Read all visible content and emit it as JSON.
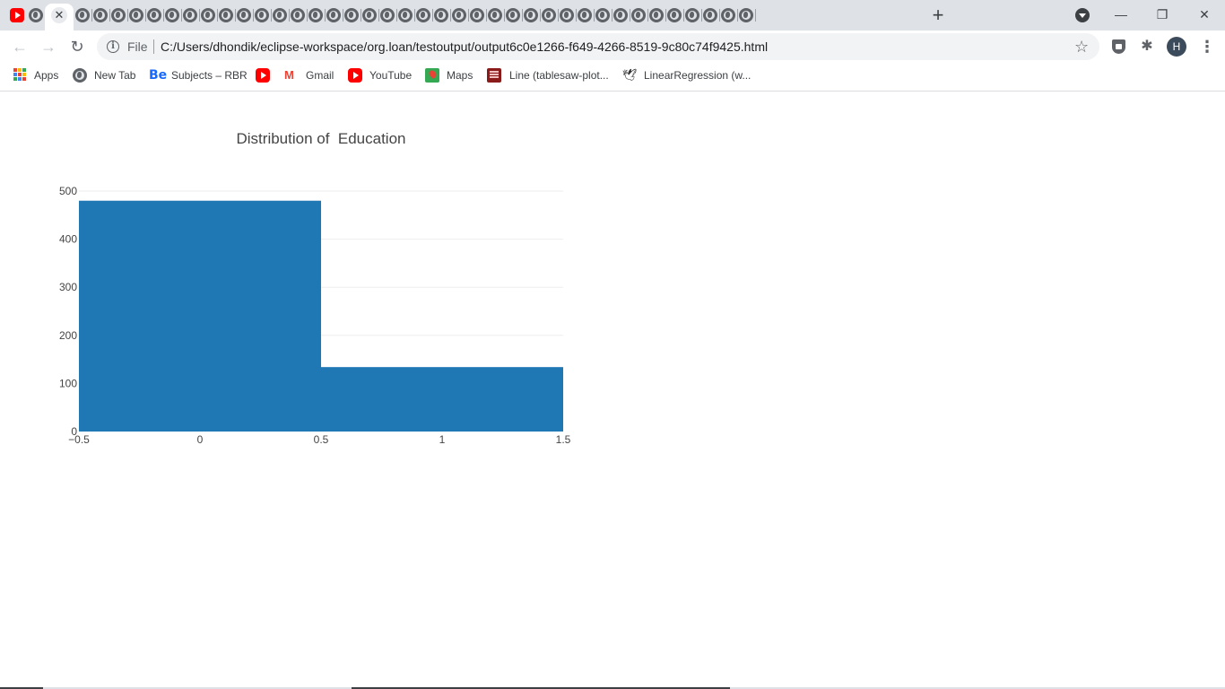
{
  "browser": {
    "active_tab_close": "✕",
    "new_tab": "+",
    "window": {
      "minimize": "—",
      "restore": "❐",
      "close": "✕"
    },
    "toolbar": {
      "back": "←",
      "forward": "→",
      "reload": "↻"
    },
    "address": {
      "scheme": "File",
      "url": "C:/Users/dhondik/eclipse-workspace/org.loan/testoutput/output6c0e1266-f649-4266-8519-9c80c74f9425.html"
    },
    "star": "☆",
    "extensions": "✱",
    "profile_initial": "H",
    "menu": "⋮",
    "bookmarks": [
      {
        "label": "Apps",
        "icon": "apps-grid-icon"
      },
      {
        "label": "New Tab",
        "icon": "globe-icon"
      },
      {
        "label": "Subjects – RBR",
        "icon": "behance-icon"
      },
      {
        "label": "",
        "icon": "youtube-icon"
      },
      {
        "label": "Gmail",
        "icon": "gmail-icon"
      },
      {
        "label": "YouTube",
        "icon": "youtube-icon"
      },
      {
        "label": "Maps",
        "icon": "maps-icon"
      },
      {
        "label": "Line (tablesaw-plot...",
        "icon": "book-icon"
      },
      {
        "label": "LinearRegression (w...",
        "icon": "bird-icon"
      }
    ],
    "colors": {
      "accent_tab": "#dee1e6",
      "youtube": "#ff0000",
      "avatar": "#3c4b5c"
    }
  },
  "chart_data": {
    "type": "bar",
    "title": "Distribution of  Education",
    "xlabel": "",
    "ylabel": "",
    "bins": [
      {
        "x0": -0.5,
        "x1": 0.5,
        "count": 480
      },
      {
        "x0": 0.5,
        "x1": 1.5,
        "count": 134
      }
    ],
    "xlim": [
      -0.5,
      1.5
    ],
    "ylim": [
      0,
      500
    ],
    "x_ticks": [
      -0.5,
      0,
      0.5,
      1,
      1.5
    ],
    "x_tick_labels": [
      "−0.5",
      "0",
      "0.5",
      "1",
      "1.5"
    ],
    "y_ticks": [
      0,
      100,
      200,
      300,
      400,
      500
    ],
    "y_tick_labels": [
      "0",
      "100",
      "200",
      "300",
      "400",
      "500"
    ],
    "grid": true,
    "bar_color": "#1f77b4"
  }
}
